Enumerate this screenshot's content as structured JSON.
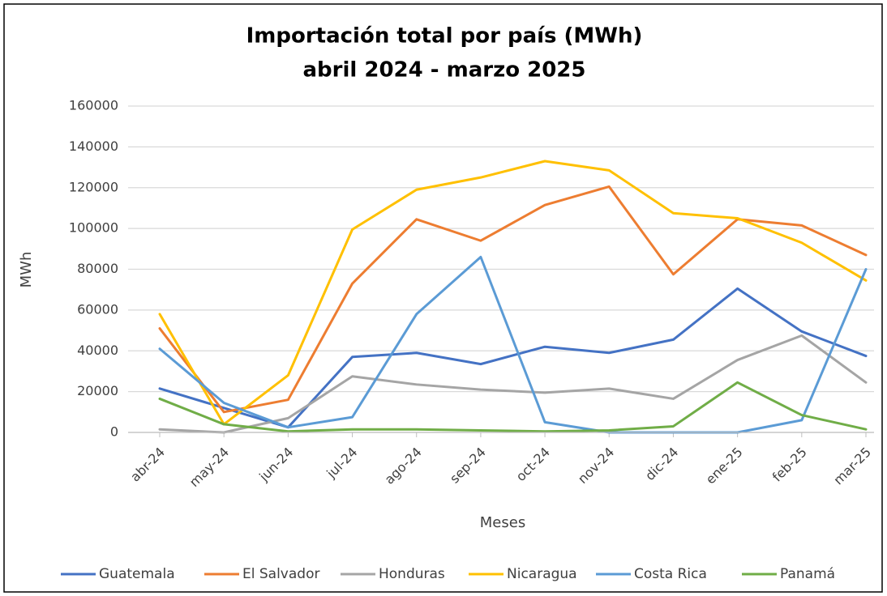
{
  "chart_data": {
    "type": "line",
    "title": "Importación total por país (MWh)",
    "subtitle": "abril 2024 - marzo 2025",
    "x_label": "Meses",
    "y_label": "MWh",
    "categories": [
      "abr-24",
      "may-24",
      "jun-24",
      "jul-24",
      "ago-24",
      "sep-24",
      "oct-24",
      "nov-24",
      "dic-24",
      "ene-25",
      "feb-25",
      "mar-25"
    ],
    "series": [
      {
        "name": "Guatemala",
        "color": "#4472c4",
        "values": [
          21500,
          12000,
          2500,
          37000,
          39000,
          33500,
          42000,
          39000,
          45500,
          70500,
          49500,
          37500
        ]
      },
      {
        "name": "El Salvador",
        "color": "#ed7d31",
        "values": [
          51000,
          10000,
          16000,
          73000,
          104500,
          94000,
          111500,
          120500,
          77500,
          104500,
          101500,
          87000
        ]
      },
      {
        "name": "Honduras",
        "color": "#a5a5a5",
        "values": [
          1500,
          0,
          7000,
          27500,
          23500,
          21000,
          19500,
          21500,
          16500,
          35500,
          47500,
          24500
        ]
      },
      {
        "name": "Nicaragua",
        "color": "#ffc000",
        "values": [
          58000,
          4000,
          28000,
          99500,
          119000,
          125000,
          133000,
          128500,
          107500,
          105000,
          93000,
          74500
        ]
      },
      {
        "name": "Costa Rica",
        "color": "#5b9bd5",
        "values": [
          41000,
          14500,
          2500,
          7500,
          58000,
          86000,
          5000,
          0,
          0,
          0,
          6000,
          80000
        ]
      },
      {
        "name": "Panamá",
        "color": "#70ad47",
        "values": [
          16500,
          4000,
          500,
          1500,
          1500,
          1000,
          500,
          1000,
          3000,
          24500,
          8500,
          1500
        ]
      }
    ],
    "ylim": [
      0,
      160000
    ],
    "yticks": [
      0,
      20000,
      40000,
      60000,
      80000,
      100000,
      120000,
      140000,
      160000
    ],
    "grid": true,
    "legend": "bottom"
  }
}
